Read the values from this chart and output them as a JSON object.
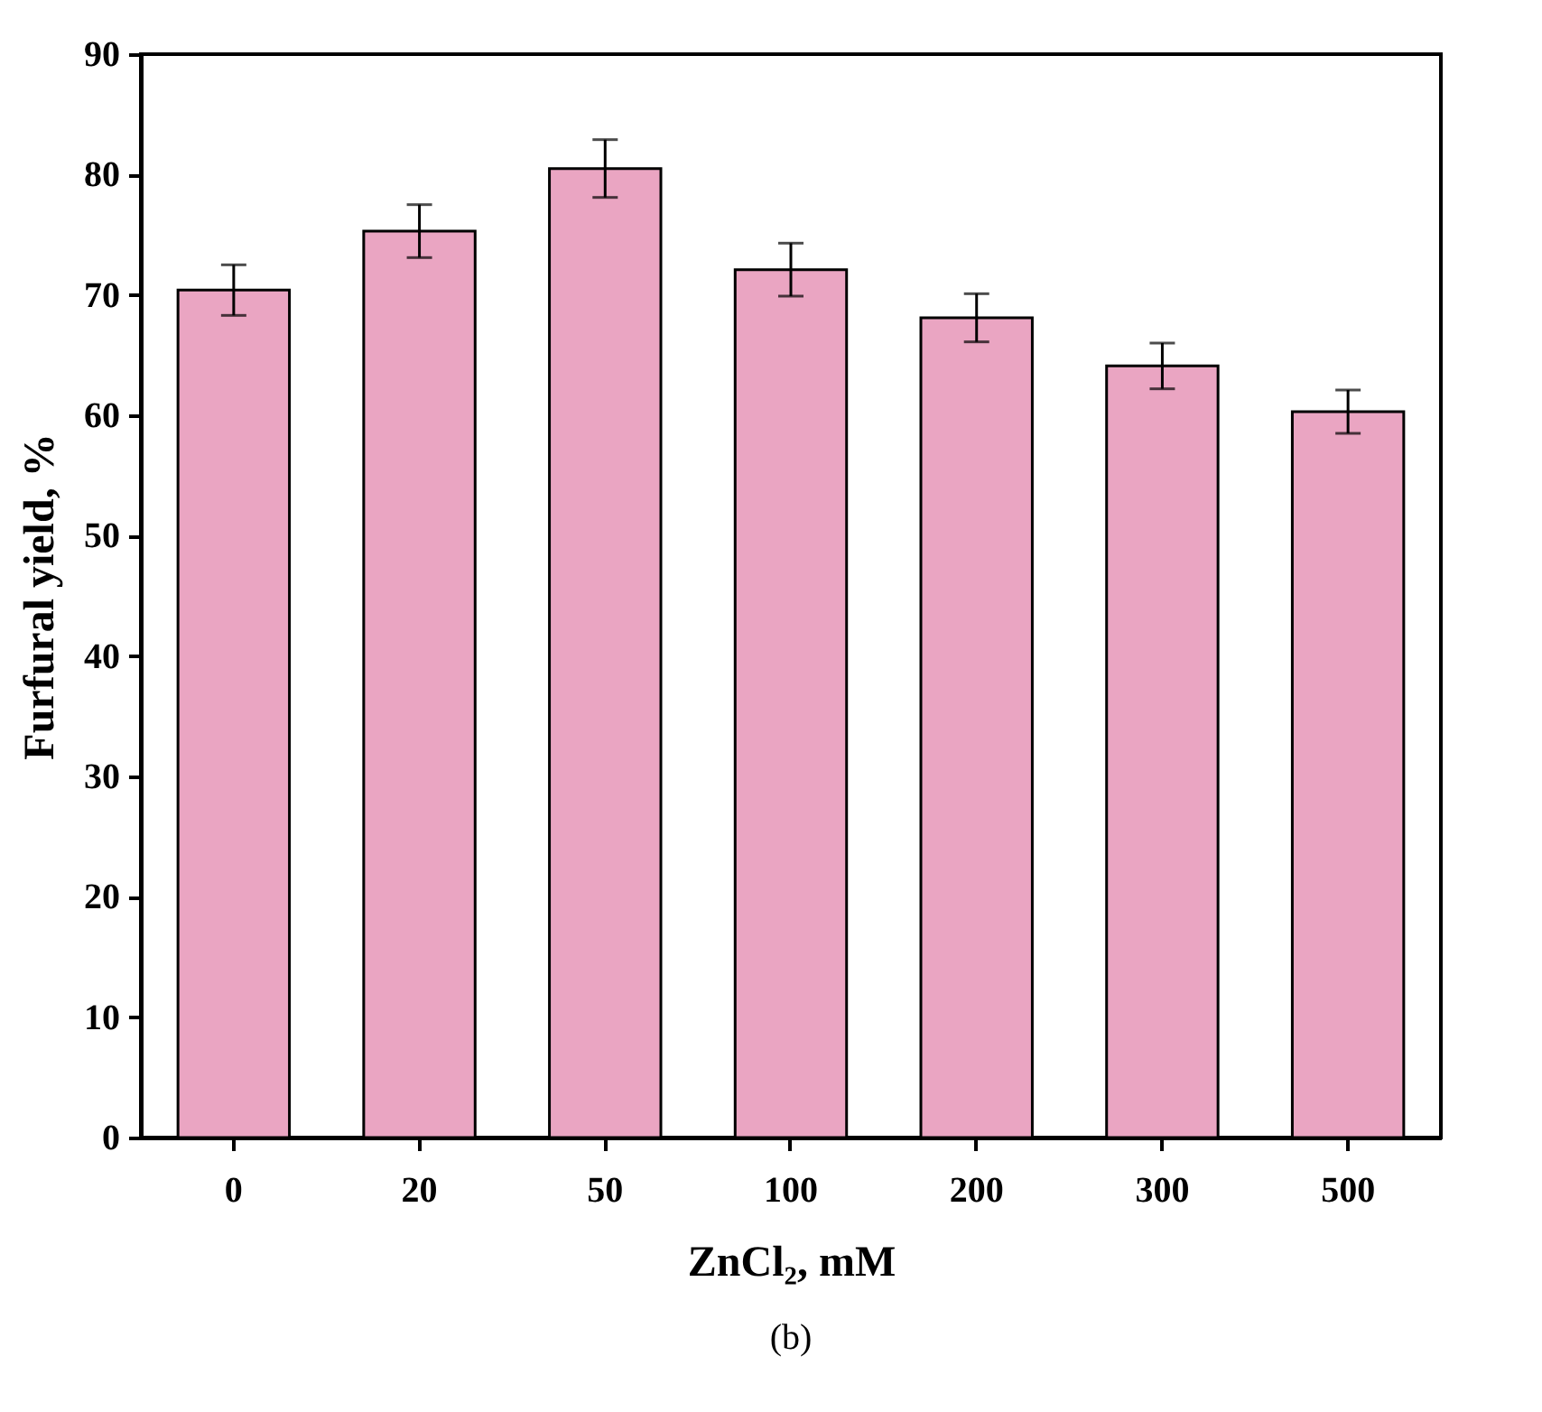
{
  "chart_data": {
    "type": "bar",
    "xlabel": "ZnCl₂, mM",
    "ylabel": "Furfural yield, %",
    "categories": [
      "0",
      "20",
      "50",
      "100",
      "200",
      "300",
      "500"
    ],
    "values": [
      70.4,
      75.3,
      80.5,
      72.1,
      68.1,
      64.1,
      60.3
    ],
    "errors": [
      2.1,
      2.2,
      2.4,
      2.2,
      2.0,
      1.9,
      1.8
    ],
    "color": "#eaa5c2",
    "ylim": [
      0,
      90
    ],
    "yticks": [
      0,
      10,
      20,
      30,
      40,
      50,
      60,
      70,
      80,
      90
    ],
    "grid": false,
    "annotations": [
      "(b)"
    ]
  }
}
